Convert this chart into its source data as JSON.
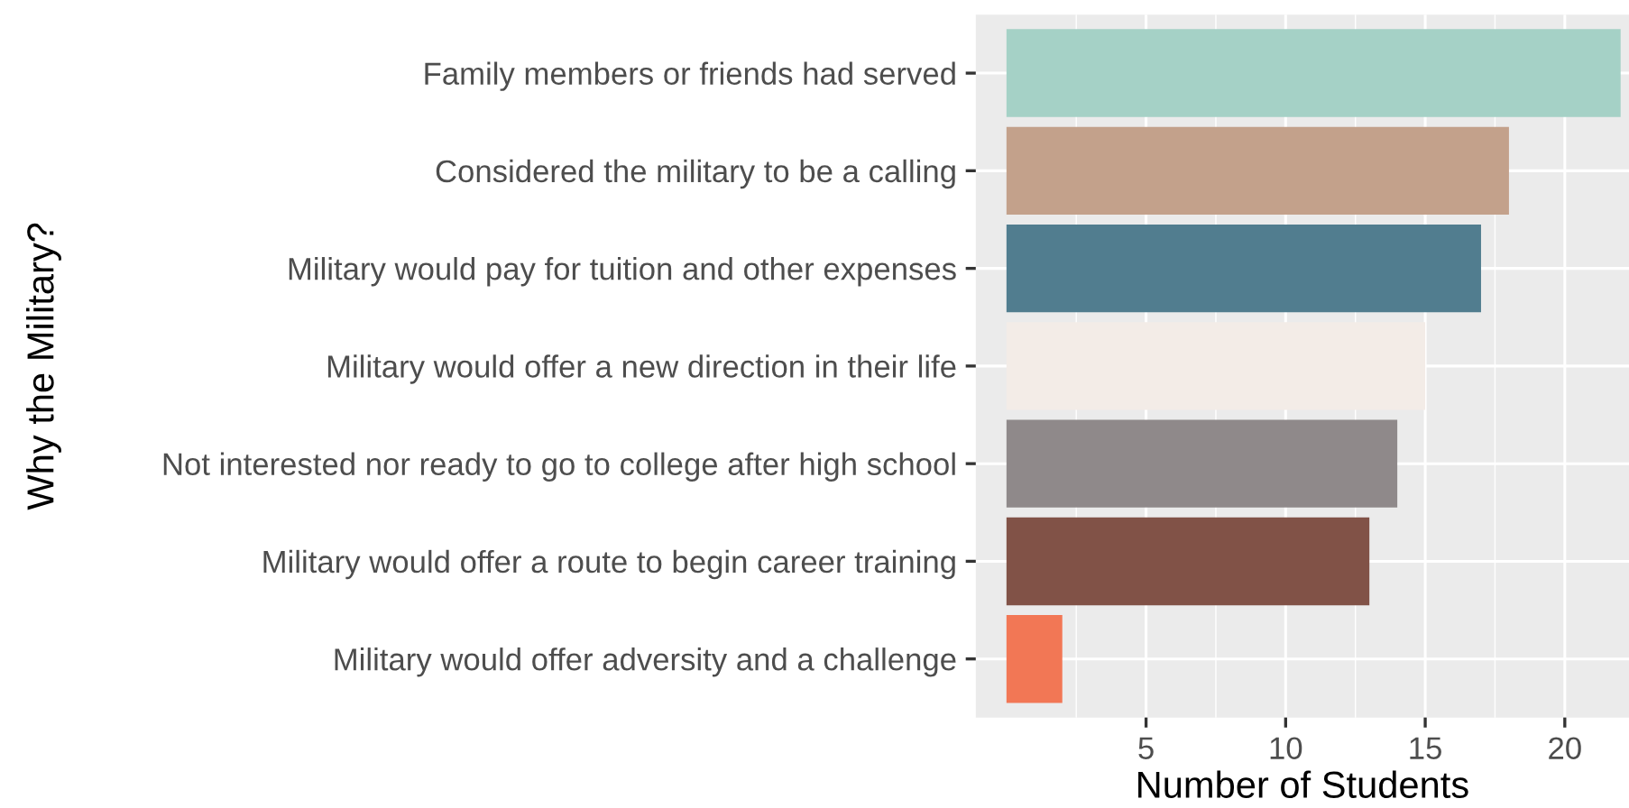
{
  "chart_data": {
    "type": "bar",
    "orientation": "horizontal",
    "xlabel": "Number of Students",
    "ylabel": "Why the Military?",
    "categories": [
      "Family members or friends had served",
      "Considered the military to be a calling",
      "Military would pay for tuition and other expenses",
      "Military would offer a new direction in their life",
      "Not interested nor ready to go to college after high school",
      "Military would offer a route to begin career training",
      "Military would offer adversity and a challenge"
    ],
    "values": [
      22,
      18,
      17,
      15,
      14,
      13,
      2
    ],
    "colors": [
      "#a5d1c6",
      "#c3a18b",
      "#517d8f",
      "#f3ece7",
      "#8f898a",
      "#815247",
      "#f27755"
    ],
    "xlim": [
      -1.1,
      22.3
    ],
    "xticks": [
      5,
      10,
      15,
      20
    ],
    "grid": true
  }
}
